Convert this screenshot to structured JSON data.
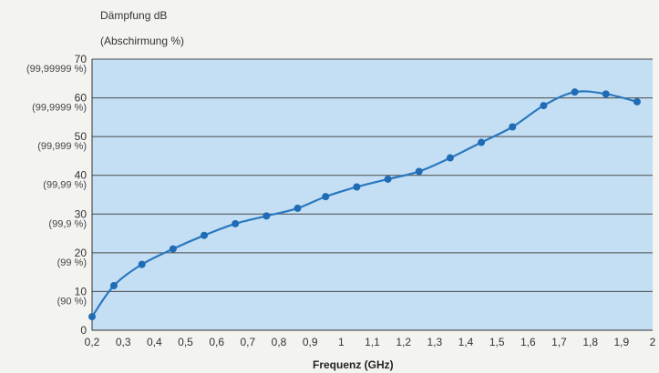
{
  "chart_data": {
    "type": "line",
    "ylabel": "Dämpfung dB",
    "ylabel2": "(Abschirmung %)",
    "xlabel": "Frequenz (GHz)",
    "xlim": [
      0.2,
      2.0
    ],
    "ylim": [
      0,
      70
    ],
    "grid": true,
    "line_color": "#2a78c0",
    "point_color": "#1f6bb5",
    "plot_bg": "#c4dff3",
    "x_ticks": [
      0.2,
      0.3,
      0.4,
      0.5,
      0.6,
      0.7,
      0.8,
      0.9,
      1.0,
      1.1,
      1.2,
      1.3,
      1.4,
      1.5,
      1.6,
      1.7,
      1.8,
      1.9,
      2.0
    ],
    "x_tick_labels": [
      "0,2",
      "0,3",
      "0,4",
      "0,5",
      "0,6",
      "0,7",
      "0,8",
      "0,9",
      "1",
      "1,1",
      "1,2",
      "1,3",
      "1,4",
      "1,5",
      "1,6",
      "1,7",
      "1,8",
      "1,9",
      "2"
    ],
    "y_ticks": [
      0,
      10,
      20,
      30,
      40,
      50,
      60,
      70
    ],
    "y_tick_labels": [
      "0",
      "10",
      "20",
      "30",
      "40",
      "50",
      "60",
      "70"
    ],
    "y_secondary_labels": [
      {
        "y": 10,
        "label": "(90 %)"
      },
      {
        "y": 20,
        "label": "(99 %)"
      },
      {
        "y": 30,
        "label": "(99,9 %)"
      },
      {
        "y": 40,
        "label": "(99,99 %)"
      },
      {
        "y": 50,
        "label": "(99,999 %)"
      },
      {
        "y": 60,
        "label": "(99,9999 %)"
      },
      {
        "y": 70,
        "label": "(99,99999 %)"
      }
    ],
    "series": [
      {
        "x": [
          0.2,
          0.27,
          0.36,
          0.46,
          0.56,
          0.66,
          0.76,
          0.86,
          0.95,
          1.05,
          1.15,
          1.25,
          1.35,
          1.45,
          1.55,
          1.65,
          1.75,
          1.85,
          1.95
        ],
        "y": [
          3.5,
          11.5,
          17.0,
          21.0,
          24.5,
          27.5,
          29.5,
          31.5,
          34.5,
          37.0,
          39.0,
          41.0,
          44.5,
          48.5,
          52.5,
          58.0,
          61.5,
          61.0,
          59.0
        ]
      }
    ]
  }
}
